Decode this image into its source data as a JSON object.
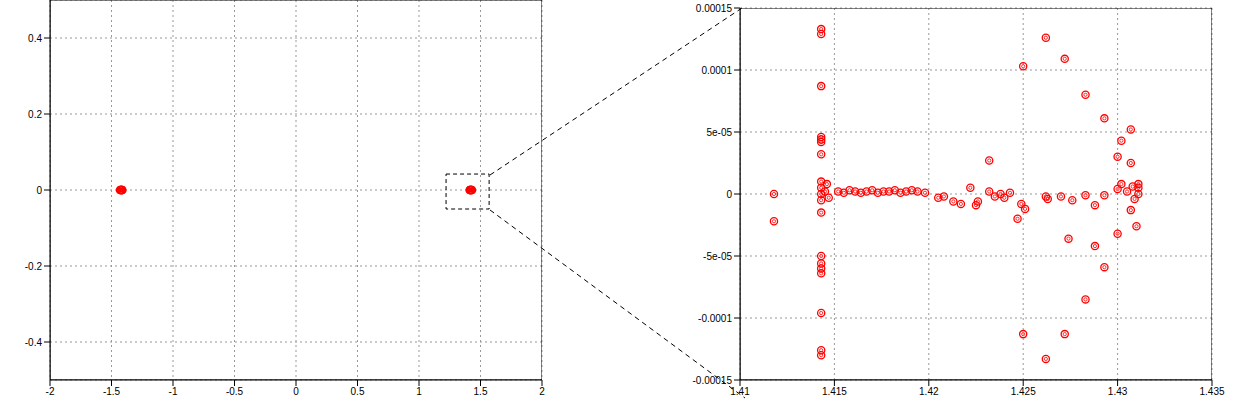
{
  "chart_data": [
    {
      "type": "scatter",
      "color": "#ff0000",
      "marker": "circle",
      "grid": true,
      "xlim": [
        -2,
        2
      ],
      "xticks": [
        -2,
        -1.5,
        -1,
        -0.5,
        0,
        0.5,
        1,
        1.5,
        2
      ],
      "ylim": [
        -0.5,
        0.5
      ],
      "yticks": [
        -0.4,
        -0.2,
        0,
        0.2,
        0.4
      ],
      "zoom_box": {
        "x": [
          1.22,
          1.57
        ],
        "y": [
          -0.05,
          0.042
        ]
      },
      "x": [
        -1.431,
        -1.428,
        -1.425,
        -1.422,
        -1.419,
        -1.416,
        -1.414,
        -1.412,
        1.412,
        1.414,
        1.416,
        1.419,
        1.422,
        1.425,
        1.428,
        1.431
      ],
      "values": [
        0,
        0,
        0,
        0,
        0,
        0,
        0,
        0,
        0,
        0,
        0,
        0,
        0,
        0,
        0,
        0
      ]
    },
    {
      "type": "scatter",
      "color": "#ff0000",
      "marker": "circle",
      "grid": true,
      "xlim": [
        1.41,
        1.435
      ],
      "xticks": [
        1.41,
        1.415,
        1.42,
        1.425,
        1.43,
        1.435
      ],
      "ylim": [
        -0.00015,
        0.00015
      ],
      "yticks": [
        -0.00015,
        -0.0001,
        {
          "value": -5e-05,
          "label": "-5e-05"
        },
        0,
        {
          "value": 5e-05,
          "label": "5e-05"
        },
        0.0001,
        0.00015
      ],
      "x": [
        1.4118,
        1.4118,
        1.4143,
        1.4143,
        1.4143,
        1.4143,
        1.4143,
        1.4143,
        1.4143,
        1.4143,
        1.4143,
        1.4143,
        1.4143,
        1.4143,
        1.4143,
        1.4143,
        1.4143,
        1.4143,
        1.4143,
        1.4143,
        1.4143,
        1.4146,
        1.4147,
        1.4145,
        1.4152,
        1.4155,
        1.4158,
        1.4161,
        1.4164,
        1.4167,
        1.417,
        1.4173,
        1.4176,
        1.4179,
        1.4182,
        1.4185,
        1.4188,
        1.4191,
        1.4194,
        1.4198,
        1.4205,
        1.4208,
        1.4213,
        1.4217,
        1.4222,
        1.4225,
        1.4226,
        1.4232,
        1.4232,
        1.4235,
        1.4238,
        1.424,
        1.4243,
        1.4247,
        1.425,
        1.425,
        1.4249,
        1.4251,
        1.4262,
        1.4262,
        1.4262,
        1.4263,
        1.4272,
        1.4272,
        1.427,
        1.4274,
        1.4276,
        1.4283,
        1.4283,
        1.4283,
        1.4288,
        1.4288,
        1.4293,
        1.4293,
        1.4293,
        1.43,
        1.43,
        1.43,
        1.4302,
        1.4305,
        1.4307,
        1.4307,
        1.4307,
        1.4308,
        1.431,
        1.4311,
        1.4311,
        1.4311,
        1.4309,
        1.4302
      ],
      "values": [
        0,
        -2.2e-05,
        0.000133,
        0.000129,
        8.7e-05,
        4.6e-05,
        4.4e-05,
        4.2e-05,
        3.2e-05,
        1e-05,
        5e-06,
        0,
        -5e-06,
        -1.5e-05,
        -5e-05,
        -5.6e-05,
        -6e-05,
        -6.4e-05,
        -9.6e-05,
        -0.000126,
        -0.00013,
        8e-06,
        -3e-06,
        2e-06,
        2e-06,
        1e-06,
        3e-06,
        2e-06,
        1e-06,
        2e-06,
        3e-06,
        1e-06,
        2e-06,
        2e-06,
        3e-06,
        1e-06,
        2e-06,
        3e-06,
        2e-06,
        1e-06,
        -3e-06,
        -2e-06,
        -6e-06,
        -8e-06,
        5e-06,
        -9e-06,
        -6e-06,
        2.7e-05,
        2e-06,
        -2e-06,
        0,
        -3e-06,
        1e-06,
        -2e-05,
        0.000103,
        -0.000113,
        -8e-06,
        -1.2e-05,
        0.000126,
        -0.000133,
        -2e-06,
        -4e-06,
        0.000109,
        -0.000113,
        -2e-06,
        -3.6e-05,
        -5e-06,
        8e-05,
        -8.5e-05,
        -1e-06,
        -4.2e-05,
        -9e-06,
        6.1e-05,
        -5.9e-05,
        -1e-06,
        3e-05,
        -3.2e-05,
        4e-06,
        4.3e-05,
        2e-06,
        5.2e-05,
        2.5e-05,
        -1.3e-05,
        6e-06,
        -2.6e-05,
        0,
        5e-06,
        8e-06,
        -4e-06,
        8e-06
      ]
    }
  ]
}
